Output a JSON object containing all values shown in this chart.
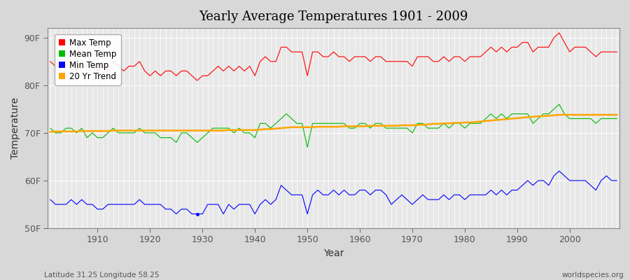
{
  "title": "Yearly Average Temperatures 1901 - 2009",
  "xlabel": "Year",
  "ylabel": "Temperature",
  "bottom_left_label": "Latitude 31.25 Longitude 58.25",
  "bottom_right_label": "worldspecies.org",
  "background_color": "#d8d8d8",
  "plot_bg_color": "#e8e8e8",
  "grid_color": "#ffffff",
  "ylim": [
    50,
    92
  ],
  "yticks": [
    50,
    60,
    70,
    80,
    90
  ],
  "ytick_labels": [
    "50F",
    "60F",
    "70F",
    "80F",
    "90F"
  ],
  "year_start": 1901,
  "year_end": 2009,
  "legend_colors": {
    "Max Temp": "#ff0000",
    "Mean Temp": "#00bb00",
    "Min Temp": "#0000ff",
    "20 Yr Trend": "#ffa500"
  },
  "max_temp": [
    85,
    84,
    84,
    85,
    85,
    83,
    85,
    84,
    85,
    83,
    84,
    83,
    85,
    84,
    83,
    84,
    84,
    85,
    83,
    82,
    83,
    82,
    83,
    83,
    82,
    83,
    83,
    82,
    81,
    82,
    82,
    83,
    84,
    83,
    84,
    83,
    84,
    83,
    84,
    82,
    85,
    86,
    85,
    85,
    88,
    88,
    87,
    87,
    87,
    82,
    87,
    87,
    86,
    86,
    87,
    86,
    86,
    85,
    86,
    86,
    86,
    85,
    86,
    86,
    85,
    85,
    85,
    85,
    85,
    84,
    86,
    86,
    86,
    85,
    85,
    86,
    85,
    86,
    86,
    85,
    86,
    86,
    86,
    87,
    88,
    87,
    88,
    87,
    88,
    88,
    89,
    89,
    87,
    88,
    88,
    88,
    90,
    91,
    89,
    87,
    88,
    88,
    88,
    87,
    86,
    87,
    87,
    87,
    87
  ],
  "mean_temp": [
    71,
    70,
    70,
    71,
    71,
    70,
    71,
    69,
    70,
    69,
    69,
    70,
    71,
    70,
    70,
    70,
    70,
    71,
    70,
    70,
    70,
    69,
    69,
    69,
    68,
    70,
    70,
    69,
    68,
    69,
    70,
    71,
    71,
    71,
    71,
    70,
    71,
    70,
    70,
    69,
    72,
    72,
    71,
    72,
    73,
    74,
    73,
    72,
    72,
    67,
    72,
    72,
    72,
    72,
    72,
    72,
    72,
    71,
    71,
    72,
    72,
    71,
    72,
    72,
    71,
    71,
    71,
    71,
    71,
    70,
    72,
    72,
    71,
    71,
    71,
    72,
    71,
    72,
    72,
    71,
    72,
    72,
    72,
    73,
    74,
    73,
    74,
    73,
    74,
    74,
    74,
    74,
    72,
    73,
    74,
    74,
    75,
    76,
    74,
    73,
    73,
    73,
    73,
    73,
    72,
    73,
    73,
    73,
    73
  ],
  "min_temp": [
    56,
    55,
    55,
    55,
    56,
    55,
    56,
    55,
    55,
    54,
    54,
    55,
    55,
    55,
    55,
    55,
    55,
    56,
    55,
    55,
    55,
    55,
    54,
    54,
    53,
    54,
    54,
    53,
    53,
    53,
    55,
    55,
    55,
    53,
    55,
    54,
    55,
    55,
    55,
    53,
    55,
    56,
    55,
    56,
    59,
    58,
    57,
    57,
    57,
    53,
    57,
    58,
    57,
    57,
    58,
    57,
    58,
    57,
    57,
    58,
    58,
    57,
    58,
    58,
    57,
    55,
    56,
    57,
    56,
    55,
    56,
    57,
    56,
    56,
    56,
    57,
    56,
    57,
    57,
    56,
    57,
    57,
    57,
    57,
    58,
    57,
    58,
    57,
    58,
    58,
    59,
    60,
    59,
    60,
    60,
    59,
    61,
    62,
    61,
    60,
    60,
    60,
    60,
    59,
    58,
    60,
    61,
    60,
    60
  ],
  "trend": [
    70.2,
    70.3,
    70.3,
    70.3,
    70.3,
    70.3,
    70.4,
    70.4,
    70.4,
    70.4,
    70.4,
    70.4,
    70.5,
    70.5,
    70.5,
    70.5,
    70.5,
    70.5,
    70.5,
    70.5,
    70.5,
    70.5,
    70.5,
    70.5,
    70.5,
    70.5,
    70.5,
    70.5,
    70.5,
    70.5,
    70.5,
    70.5,
    70.5,
    70.5,
    70.6,
    70.6,
    70.6,
    70.6,
    70.6,
    70.6,
    70.7,
    70.8,
    70.8,
    70.9,
    71.0,
    71.1,
    71.2,
    71.2,
    71.2,
    71.2,
    71.2,
    71.3,
    71.3,
    71.3,
    71.3,
    71.3,
    71.4,
    71.4,
    71.4,
    71.4,
    71.4,
    71.5,
    71.5,
    71.5,
    71.5,
    71.5,
    71.5,
    71.6,
    71.6,
    71.6,
    71.7,
    71.7,
    71.8,
    71.9,
    71.9,
    72.0,
    72.0,
    72.1,
    72.1,
    72.2,
    72.2,
    72.3,
    72.4,
    72.5,
    72.6,
    72.7,
    72.8,
    72.9,
    73.0,
    73.1,
    73.2,
    73.3,
    73.4,
    73.5,
    73.5,
    73.6,
    73.7,
    73.8,
    73.8,
    73.8,
    73.8,
    73.8,
    73.8,
    73.8,
    73.8,
    73.8,
    73.8,
    73.8,
    73.8
  ]
}
